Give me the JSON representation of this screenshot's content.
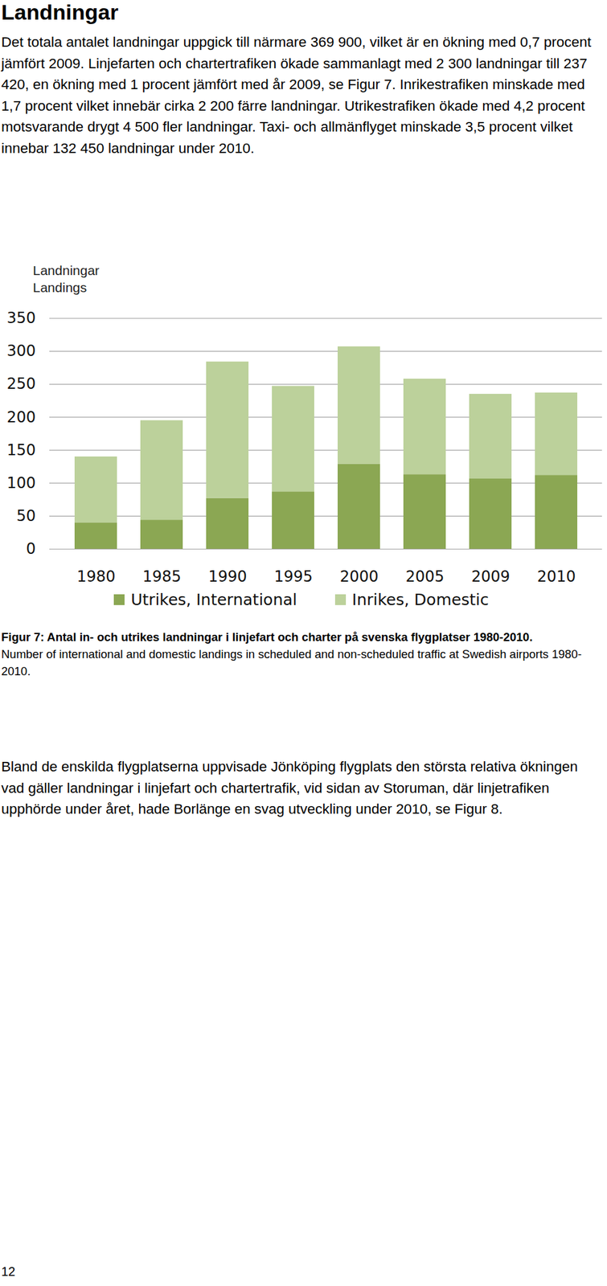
{
  "heading": "Landningar",
  "paragraph_1": "Det totala antalet landningar uppgick till närmare 369 900, vilket är en ökning med 0,7 procent jämfört 2009. Linjefarten och chartertrafiken ökade sammanlagt med 2 300 landningar till 237 420, en ökning med 1 procent jämfört med år 2009, se Figur 7. Inrikestrafiken minskade med 1,7 procent vilket innebär cirka 2 200 färre landningar. Utrikestrafiken ökade med 4,2 procent motsvarande drygt 4 500 fler landningar. Taxi- och allmänflyget minskade 3,5 procent vilket innebar 132 450 landningar under 2010.",
  "chart_data": {
    "type": "bar",
    "y_label": [
      "Landningar",
      "Landings"
    ],
    "categories": [
      "1980",
      "1985",
      "1990",
      "1995",
      "2000",
      "2005",
      "2009",
      "2010"
    ],
    "series": [
      {
        "name": "Utrikes, International",
        "color": "#8ba753",
        "values": [
          40,
          44,
          77,
          87,
          129,
          113,
          107,
          112
        ]
      },
      {
        "name": "Inrikes, Domestic",
        "color": "#bcd19b",
        "values": [
          100,
          151,
          207,
          160,
          178,
          145,
          128,
          125
        ]
      }
    ],
    "stacked": true,
    "ylim": [
      0,
      350
    ],
    "yticks": [
      0,
      50,
      100,
      150,
      200,
      250,
      300,
      350
    ],
    "grid": true,
    "legend": "bottom"
  },
  "caption": {
    "title": "Figur 7: Antal in- och utrikes landningar i linjefart och charter på svenska flygplatser 1980-2010.",
    "subtitle": "Number of international and domestic landings in scheduled and non-scheduled traffic at Swedish airports 1980-2010."
  },
  "paragraph_2": "Bland de enskilda flygplatserna uppvisade Jönköping flygplats den största relativa ökningen vad gäller landningar i linjefart och chartertrafik, vid sidan av Storuman, där linjetrafiken upphörde under året, hade Borlänge en svag utveckling under 2010, se Figur 8.",
  "page_number": "12"
}
